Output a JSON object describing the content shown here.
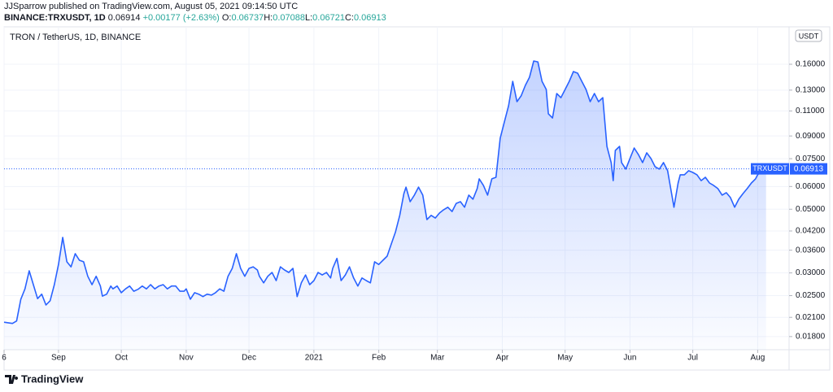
{
  "header": {
    "publisher_line": "JJSparrow published on TradingView.com, August 05, 2021 09:14:50 UTC",
    "symbol": "BINANCE:TRXUSDT, 1D",
    "last": "0.06914",
    "change": "+0.00177 (+2.63%)",
    "ohlc": [
      {
        "label": "O:",
        "value": "0.06737"
      },
      {
        "label": "H:",
        "value": "0.07088"
      },
      {
        "label": "L:",
        "value": "0.06721"
      },
      {
        "label": "C:",
        "value": "0.06913"
      }
    ]
  },
  "footer": {
    "logo": "TradingView"
  },
  "chart_data": {
    "type": "area",
    "title": "TRON / TetherUS, 1D, BINANCE",
    "currency": "USDT",
    "log_scale": true,
    "grid": true,
    "xlim": [
      0,
      375
    ],
    "ylim": [
      0.0162,
      0.216
    ],
    "xticks": [
      {
        "value": 0,
        "label": "6"
      },
      {
        "value": 26,
        "label": "Sep"
      },
      {
        "value": 56,
        "label": "Oct"
      },
      {
        "value": 87,
        "label": "Nov"
      },
      {
        "value": 117,
        "label": "Dec"
      },
      {
        "value": 148,
        "label": "2021"
      },
      {
        "value": 179,
        "label": "Feb"
      },
      {
        "value": 207,
        "label": "Mar"
      },
      {
        "value": 238,
        "label": "Apr"
      },
      {
        "value": 268,
        "label": "May"
      },
      {
        "value": 299,
        "label": "Jun"
      },
      {
        "value": 329,
        "label": "Jul"
      },
      {
        "value": 360,
        "label": "Aug"
      }
    ],
    "yticks": [
      {
        "value": 0.16,
        "label": "0.16000"
      },
      {
        "value": 0.13,
        "label": "0.13000"
      },
      {
        "value": 0.11,
        "label": "0.11000"
      },
      {
        "value": 0.09,
        "label": "0.09000"
      },
      {
        "value": 0.075,
        "label": "0.07500"
      },
      {
        "value": 0.06,
        "label": "0.06000"
      },
      {
        "value": 0.05,
        "label": "0.05000"
      },
      {
        "value": 0.042,
        "label": "0.04200"
      },
      {
        "value": 0.036,
        "label": "0.03600"
      },
      {
        "value": 0.03,
        "label": "0.03000"
      },
      {
        "value": 0.025,
        "label": "0.02500"
      },
      {
        "value": 0.021,
        "label": "0.02100"
      },
      {
        "value": 0.018,
        "label": "0.01800"
      }
    ],
    "x": [
      0,
      4,
      6,
      8,
      10,
      12,
      14,
      16,
      18,
      20,
      22,
      24,
      26,
      28,
      30,
      32,
      34,
      36,
      38,
      40,
      42,
      44,
      46,
      47,
      49,
      51,
      52,
      54,
      56,
      58,
      60,
      62,
      64,
      66,
      68,
      70,
      72,
      74,
      76,
      78,
      80,
      82,
      84,
      86,
      87,
      89,
      91,
      93,
      95,
      97,
      99,
      101,
      103,
      105,
      107,
      109,
      111,
      113,
      115,
      117,
      119,
      121,
      122,
      124,
      126,
      128,
      130,
      132,
      134,
      136,
      138,
      140,
      142,
      144,
      146,
      148,
      150,
      152,
      154,
      156,
      157,
      159,
      161,
      163,
      165,
      167,
      169,
      171,
      173,
      175,
      177,
      179,
      181,
      183,
      185,
      187,
      189,
      191,
      192,
      194,
      196,
      198,
      200,
      202,
      204,
      206,
      208,
      210,
      212,
      214,
      216,
      218,
      220,
      222,
      224,
      226,
      227,
      229,
      231,
      233,
      235,
      237,
      239,
      241,
      243,
      245,
      247,
      249,
      251,
      253,
      255,
      257,
      259,
      260,
      262,
      264,
      266,
      268,
      270,
      272,
      274,
      276,
      278,
      280,
      282,
      284,
      286,
      288,
      290,
      291,
      292,
      294,
      295,
      297,
      299,
      301,
      303,
      305,
      307,
      309,
      311,
      313,
      315,
      317,
      319,
      320,
      322,
      323,
      325,
      327,
      329,
      331,
      333,
      335,
      337,
      339,
      341,
      343,
      345,
      347,
      349,
      351,
      353,
      355,
      357,
      359,
      360,
      362,
      364
    ],
    "series": [
      {
        "name": "TRXUSDT",
        "color": "#2962ff",
        "values": [
          0.0202,
          0.02,
          0.0204,
          0.0243,
          0.0264,
          0.0305,
          0.0273,
          0.0244,
          0.0253,
          0.0232,
          0.024,
          0.0273,
          0.0321,
          0.0399,
          0.0328,
          0.0315,
          0.035,
          0.0332,
          0.0328,
          0.0292,
          0.0273,
          0.0292,
          0.027,
          0.0249,
          0.0253,
          0.027,
          0.0264,
          0.027,
          0.0256,
          0.0264,
          0.027,
          0.0259,
          0.0263,
          0.027,
          0.0264,
          0.0273,
          0.0264,
          0.027,
          0.0273,
          0.0264,
          0.027,
          0.027,
          0.0259,
          0.0259,
          0.0264,
          0.0243,
          0.0256,
          0.0253,
          0.0248,
          0.0253,
          0.0251,
          0.0256,
          0.0264,
          0.0259,
          0.0292,
          0.0311,
          0.035,
          0.0311,
          0.0292,
          0.0311,
          0.0315,
          0.0307,
          0.0292,
          0.0277,
          0.0292,
          0.0301,
          0.0282,
          0.0315,
          0.0307,
          0.0301,
          0.0311,
          0.0248,
          0.0277,
          0.0295,
          0.0273,
          0.0282,
          0.0301,
          0.0295,
          0.0301,
          0.0288,
          0.0311,
          0.0337,
          0.0282,
          0.0295,
          0.0315,
          0.0288,
          0.027,
          0.0288,
          0.0282,
          0.0277,
          0.0328,
          0.0321,
          0.0332,
          0.0343,
          0.0379,
          0.0417,
          0.0476,
          0.0567,
          0.0597,
          0.0531,
          0.056,
          0.0597,
          0.056,
          0.046,
          0.0476,
          0.0466,
          0.0485,
          0.0498,
          0.0508,
          0.0491,
          0.0524,
          0.0531,
          0.0508,
          0.056,
          0.0542,
          0.059,
          0.0638,
          0.0605,
          0.056,
          0.0638,
          0.0646,
          0.0884,
          0.1007,
          0.1147,
          0.1395,
          0.1185,
          0.1241,
          0.135,
          0.1441,
          0.1642,
          0.1631,
          0.1395,
          0.1307,
          0.1075,
          0.104,
          0.1265,
          0.1224,
          0.1307,
          0.1395,
          0.1509,
          0.1489,
          0.1395,
          0.1307,
          0.1185,
          0.1265,
          0.1185,
          0.1224,
          0.0828,
          0.0727,
          0.0629,
          0.0801,
          0.0828,
          0.0727,
          0.069,
          0.0751,
          0.0817,
          0.0776,
          0.0727,
          0.0786,
          0.0751,
          0.0703,
          0.069,
          0.0727,
          0.0681,
          0.056,
          0.0508,
          0.0617,
          0.0659,
          0.0659,
          0.0681,
          0.0672,
          0.0659,
          0.0629,
          0.0646,
          0.0617,
          0.0605,
          0.059,
          0.056,
          0.0571,
          0.0549,
          0.0508,
          0.0542,
          0.0567,
          0.059,
          0.0617,
          0.0638,
          0.0659,
          0.0681,
          0.06913
        ]
      }
    ]
  }
}
